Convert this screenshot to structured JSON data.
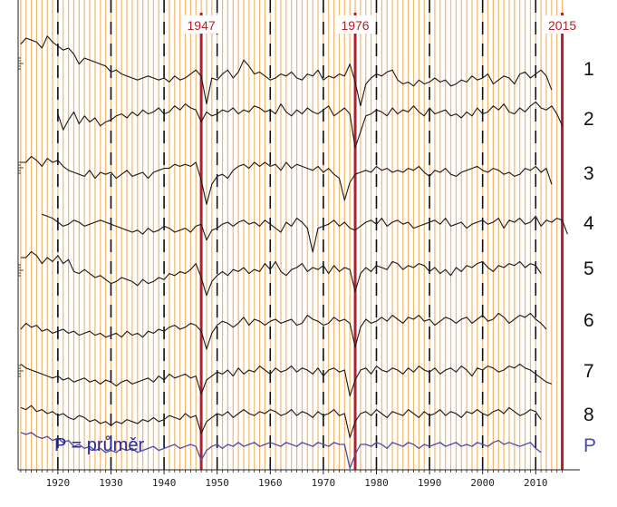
{
  "chart_data": {
    "type": "line",
    "xlim": [
      1912,
      2016
    ],
    "x_ticks": [
      "1920",
      "1930",
      "1940",
      "1950",
      "1960",
      "1970",
      "1980",
      "1990",
      "2000",
      "2010"
    ],
    "y_scale": "log",
    "y_axis": "logarithmic, tick labels not legible",
    "grid": "vertical yearly lines (orange), dashed black decade lines",
    "highlighted_years": [
      {
        "label": "1947",
        "year": 1947
      },
      {
        "label": "1976",
        "year": 1976
      },
      {
        "label": "2015",
        "year": 2015
      }
    ],
    "series": [
      {
        "name": "1",
        "x_start": 1913,
        "values": [
          1.2,
          1.5,
          1.4,
          1.3,
          1.0,
          1.6,
          1.3,
          1.1,
          0.9,
          1.0,
          0.7,
          0.2,
          0.5,
          0.4,
          0.3,
          0.2,
          0.1,
          -0.2,
          -0.1,
          -0.3,
          -0.4,
          -0.5,
          -0.6,
          -0.5,
          -0.4,
          -0.5,
          -0.6,
          -0.5,
          -0.7,
          -0.4,
          -0.6,
          -0.5,
          -0.3,
          -0.1,
          -0.4,
          -1.8,
          -0.5,
          -0.6,
          -0.3,
          -0.1,
          -0.5,
          -0.2,
          0.4,
          0.1,
          -0.3,
          -0.2,
          -0.4,
          -0.6,
          -0.5,
          -0.3,
          -0.4,
          -0.2,
          -0.5,
          -0.6,
          -0.3,
          -0.4,
          -0.1,
          -0.6,
          -0.4,
          -0.5,
          -0.3,
          -0.4,
          0.2,
          -0.7,
          -1.9,
          -0.8,
          -0.5,
          -0.3,
          -0.4,
          -0.2,
          -0.1,
          -0.6,
          -0.8,
          -0.7,
          -0.9,
          -0.6,
          -0.8,
          -0.7,
          -0.5,
          -0.7,
          -0.6,
          -0.9,
          -0.8,
          -0.6,
          -0.7,
          -0.4,
          -0.6,
          -0.5,
          -0.3,
          -0.8,
          -0.6,
          -0.4,
          -0.5,
          -0.8,
          -0.3,
          -0.2,
          -0.5,
          -0.3,
          -0.1,
          -0.4,
          -1.1
        ]
      },
      {
        "name": "2",
        "x_start": 1920,
        "values": [
          0.2,
          -0.6,
          -0.1,
          0.3,
          -0.3,
          0.1,
          -0.2,
          0.0,
          -0.4,
          -0.2,
          -0.1,
          0.1,
          0.2,
          0.0,
          0.3,
          0.1,
          0.4,
          0.2,
          0.3,
          0.5,
          0.2,
          0.3,
          0.6,
          0.4,
          0.7,
          0.5,
          0.4,
          -0.2,
          0.3,
          0.1,
          0.2,
          0.4,
          0.3,
          0.5,
          0.2,
          0.4,
          0.3,
          0.6,
          0.5,
          0.3,
          0.4,
          0.2,
          0.7,
          0.3,
          0.1,
          0.4,
          0.2,
          0.5,
          0.3,
          0.2,
          0.4,
          0.6,
          0.1,
          0.3,
          0.5,
          0.2,
          -1.5,
          -0.7,
          0.1,
          0.2,
          0.4,
          0.3,
          0.1,
          0.5,
          0.2,
          0.4,
          0.3,
          0.6,
          0.3,
          0.1,
          0.5,
          0.2,
          0.3,
          0.4,
          0.1,
          0.2,
          0.0,
          0.3,
          0.1,
          0.5,
          0.2,
          0.3,
          0.6,
          0.4,
          0.7,
          0.3,
          0.2,
          0.5,
          0.3,
          0.6,
          0.8,
          0.5,
          0.4,
          0.6,
          0.2,
          -0.4
        ]
      },
      {
        "name": "3",
        "x_start": 1913,
        "values": [
          0.5,
          0.5,
          0.8,
          0.6,
          0.3,
          0.7,
          0.5,
          0.6,
          0.3,
          0.1,
          0.0,
          -0.1,
          -0.2,
          0.1,
          -0.3,
          0.0,
          -0.1,
          0.0,
          -0.3,
          -0.1,
          0.1,
          -0.2,
          -0.1,
          0.0,
          -0.3,
          0.0,
          0.1,
          0.2,
          0.2,
          0.4,
          0.3,
          0.4,
          0.3,
          0.5,
          -0.4,
          -1.6,
          -0.6,
          -0.2,
          -0.1,
          -0.3,
          0.1,
          0.3,
          0.4,
          0.2,
          0.5,
          0.3,
          0.5,
          0.3,
          0.4,
          0.1,
          0.5,
          0.2,
          0.4,
          0.3,
          0.2,
          0.1,
          0.3,
          0.0,
          0.2,
          -0.1,
          -0.3,
          -1.4,
          -0.5,
          -0.1,
          0.0,
          0.1,
          0.0,
          0.3,
          0.1,
          0.2,
          0.0,
          0.1,
          0.0,
          0.2,
          0.1,
          0.3,
          0.0,
          -0.2,
          0.1,
          0.0,
          0.2,
          -0.1,
          -0.2,
          0.0,
          0.1,
          0.2,
          0.3,
          0.1,
          0.0,
          0.2,
          0.1,
          -0.1,
          0.0,
          -0.2,
          -0.1,
          0.2,
          0.1,
          0.3,
          0.0,
          0.2,
          -0.6
        ]
      },
      {
        "name": "4",
        "x_start": 1917,
        "values": [
          0.4,
          0.3,
          0.2,
          0.0,
          -0.2,
          -0.1,
          0.1,
          0.0,
          -0.2,
          -0.1,
          0.0,
          0.1,
          0.0,
          -0.1,
          -0.2,
          -0.3,
          -0.4,
          -0.5,
          -0.4,
          -0.6,
          -0.3,
          -0.5,
          -0.4,
          -0.2,
          -0.3,
          -0.5,
          -0.4,
          -0.3,
          -0.5,
          -0.2,
          -0.1,
          -0.9,
          -0.4,
          -0.3,
          -0.1,
          0.0,
          -0.2,
          0.0,
          0.1,
          -0.1,
          0.0,
          -0.2,
          0.1,
          -0.1,
          -0.3,
          -0.5,
          0.0,
          -0.2,
          0.2,
          0.0,
          -0.3,
          -1.5,
          -0.3,
          -0.2,
          -0.1,
          0.1,
          -0.2,
          0.0,
          -0.3,
          -0.4,
          -0.2,
          0.0,
          0.1,
          -0.1,
          0.2,
          -0.2,
          0.0,
          0.1,
          -0.1,
          0.0,
          -0.3,
          -0.2,
          -0.1,
          0.0,
          0.1,
          -0.1,
          0.2,
          -0.2,
          -0.1,
          0.0,
          -0.3,
          -0.1,
          0.0,
          0.1,
          -0.1,
          0.0,
          0.2,
          -0.3,
          0.1,
          0.0,
          0.2,
          -0.1,
          0.0,
          0.3,
          -0.2,
          0.1,
          0.0,
          0.2,
          0.1,
          -0.6
        ]
      },
      {
        "name": "5",
        "x_start": 1913,
        "values": [
          0.5,
          0.5,
          0.8,
          0.6,
          0.2,
          0.5,
          0.3,
          0.6,
          0.2,
          0.4,
          -0.2,
          -0.3,
          -0.1,
          -0.3,
          -0.5,
          -0.4,
          -0.6,
          -0.8,
          -0.7,
          -0.5,
          -0.6,
          -0.7,
          -0.9,
          -0.6,
          -0.8,
          -0.7,
          -0.5,
          -0.6,
          -0.3,
          -0.4,
          -0.2,
          -0.3,
          -0.1,
          0.2,
          -0.5,
          -1.4,
          -0.7,
          -0.4,
          -0.2,
          -0.4,
          -0.1,
          -0.2,
          0.0,
          -0.3,
          -0.1,
          -0.2,
          0.2,
          -0.1,
          0.3,
          -0.2,
          -0.4,
          -0.1,
          0.0,
          0.2,
          -0.2,
          0.0,
          -0.1,
          0.1,
          -0.3,
          0.1,
          -0.2,
          0.0,
          -0.1,
          -1.2,
          -0.3,
          0.0,
          -0.2,
          0.1,
          0.0,
          -0.1,
          0.3,
          0.2,
          -0.1,
          0.1,
          0.0,
          0.2,
          0.1,
          -0.2,
          0.0,
          -0.3,
          -0.1,
          -0.4,
          0.0,
          -0.2,
          0.1,
          0.0,
          0.2,
          0.3,
          0.0,
          -0.2,
          0.1,
          0.0,
          0.2,
          0.1,
          0.3,
          0.0,
          0.2,
          0.1,
          -0.3
        ]
      },
      {
        "name": "6",
        "x_start": 1913,
        "values": [
          -0.5,
          -0.2,
          -0.4,
          -0.3,
          -0.6,
          -0.5,
          -0.7,
          -0.6,
          -0.5,
          -0.7,
          -0.6,
          -0.8,
          -0.7,
          -0.6,
          -0.8,
          -0.7,
          -0.9,
          -0.8,
          -0.7,
          -0.9,
          -0.6,
          -0.8,
          -0.7,
          -0.9,
          -0.6,
          -0.7,
          -0.5,
          -0.6,
          -0.4,
          -0.3,
          -0.5,
          -0.4,
          -0.2,
          -0.3,
          -0.6,
          -1.5,
          -0.7,
          -0.3,
          -0.1,
          -0.2,
          -0.4,
          -0.2,
          0.1,
          -0.3,
          0.0,
          -0.1,
          -0.3,
          -0.1,
          0.0,
          -0.2,
          -0.1,
          0.0,
          -0.3,
          -0.2,
          0.2,
          0.0,
          -0.1,
          -0.3,
          -0.2,
          0.1,
          -0.1,
          0.0,
          -0.2,
          -1.4,
          -0.4,
          0.0,
          -0.2,
          -0.1,
          0.1,
          -0.1,
          0.2,
          0.0,
          -0.2,
          0.1,
          0.0,
          0.2,
          -0.1,
          0.0,
          -0.3,
          -0.1,
          0.1,
          0.0,
          -0.2,
          0.0,
          0.1,
          -0.2,
          0.0,
          0.2,
          -0.1,
          0.0,
          0.3,
          0.1,
          -0.2,
          0.0,
          0.2,
          0.1,
          0.3,
          0.0,
          -0.2,
          -0.5
        ]
      },
      {
        "name": "7",
        "x_start": 1913,
        "values": [
          0.3,
          0.1,
          0.0,
          -0.1,
          -0.2,
          -0.3,
          -0.4,
          -0.3,
          -0.5,
          -0.4,
          -0.6,
          -0.5,
          -0.4,
          -0.6,
          -0.5,
          -0.7,
          -0.5,
          -0.6,
          -0.8,
          -0.6,
          -0.5,
          -0.7,
          -0.6,
          -0.5,
          -0.4,
          -0.6,
          -0.3,
          -0.5,
          -0.2,
          -0.4,
          -0.3,
          -0.2,
          -0.4,
          -0.3,
          -1.2,
          -0.5,
          -0.3,
          -0.1,
          -0.2,
          0.0,
          -0.3,
          0.1,
          -0.2,
          0.0,
          -0.1,
          0.2,
          0.0,
          -0.2,
          0.1,
          -0.1,
          0.0,
          0.2,
          -0.1,
          0.1,
          0.0,
          -0.2,
          0.1,
          -0.3,
          0.0,
          0.1,
          -0.1,
          0.0,
          -1.3,
          -0.5,
          0.0,
          0.1,
          -0.2,
          0.2,
          0.0,
          -0.1,
          0.1,
          0.0,
          -0.2,
          0.1,
          -0.1,
          0.2,
          0.0,
          -0.1,
          0.1,
          -0.2,
          0.0,
          0.1,
          -0.1,
          0.2,
          0.0,
          -0.3,
          0.1,
          0.0,
          0.2,
          0.1,
          -0.1,
          0.0,
          0.2,
          0.1,
          0.3,
          0.1,
          0.0,
          -0.2,
          -0.4,
          -0.6,
          -0.7
        ]
      },
      {
        "name": "8",
        "x_start": 1913,
        "values": [
          0.3,
          0.2,
          0.4,
          0.1,
          0.2,
          0.0,
          0.1,
          -0.1,
          0.0,
          -0.2,
          -0.3,
          -0.1,
          -0.2,
          -0.4,
          -0.3,
          -0.5,
          -0.4,
          -0.6,
          -0.4,
          -0.5,
          -0.3,
          -0.4,
          -0.5,
          -0.3,
          -0.4,
          -0.2,
          -0.4,
          -0.3,
          -0.1,
          -0.2,
          -0.3,
          0.0,
          -0.2,
          -0.1,
          -1.0,
          -0.4,
          -0.2,
          0.0,
          -0.1,
          0.1,
          -0.2,
          0.0,
          0.2,
          0.0,
          -0.1,
          0.1,
          0.0,
          0.2,
          0.1,
          -0.1,
          0.0,
          0.2,
          -0.1,
          0.1,
          0.0,
          -0.2,
          0.1,
          -0.1,
          0.0,
          0.2,
          -0.1,
          0.0,
          -1.2,
          -0.4,
          0.0,
          0.1,
          -0.1,
          0.2,
          0.0,
          -0.2,
          0.1,
          0.0,
          -0.1,
          0.2,
          0.0,
          -0.2,
          0.1,
          -0.1,
          0.0,
          0.2,
          -0.1,
          0.1,
          0.0,
          -0.2,
          0.1,
          0.0,
          0.2,
          0.0,
          -0.1,
          0.1,
          0.2,
          0.0,
          0.3,
          0.1,
          -0.1,
          0.0,
          0.2,
          0.1,
          -0.3
        ]
      },
      {
        "name": "P",
        "x_start": 1913,
        "values": [
          0.6,
          0.5,
          0.6,
          0.4,
          0.3,
          0.4,
          0.2,
          0.3,
          0.1,
          0.2,
          -0.1,
          0.0,
          -0.2,
          -0.1,
          -0.3,
          -0.2,
          -0.4,
          -0.3,
          -0.4,
          -0.2,
          -0.3,
          -0.2,
          -0.4,
          -0.3,
          -0.2,
          -0.1,
          -0.3,
          -0.2,
          -0.1,
          0.0,
          -0.2,
          -0.1,
          0.0,
          -0.1,
          -0.8,
          -0.3,
          -0.1,
          0.0,
          -0.2,
          0.0,
          -0.1,
          0.1,
          -0.1,
          0.0,
          0.1,
          -0.1,
          0.0,
          0.1,
          0.0,
          -0.1,
          0.1,
          0.0,
          -0.1,
          0.1,
          0.0,
          -0.1,
          0.1,
          0.0,
          -0.1,
          0.1,
          0.0,
          0.0,
          -1.2,
          -0.5,
          0.0,
          0.0,
          -0.1,
          0.1,
          0.0,
          -0.2,
          0.1,
          0.0,
          -0.1,
          0.1,
          0.0,
          -0.2,
          0.0,
          -0.1,
          0.0,
          0.1,
          -0.1,
          0.0,
          0.1,
          -0.1,
          0.0,
          -0.1,
          0.1,
          0.0,
          -0.1,
          0.1,
          0.2,
          0.0,
          0.1,
          0.0,
          -0.1,
          0.0,
          0.1,
          -0.2,
          -0.4
        ]
      }
    ],
    "legend": {
      "text": "P = průměr",
      "color": "#2a2a9a"
    },
    "colors": {
      "year_line": "#f0b86e",
      "decade_line": "#111111",
      "event_line": "#b3202a",
      "series_line": "#1a1a1a",
      "mean_line": "#4b4ba8"
    }
  }
}
